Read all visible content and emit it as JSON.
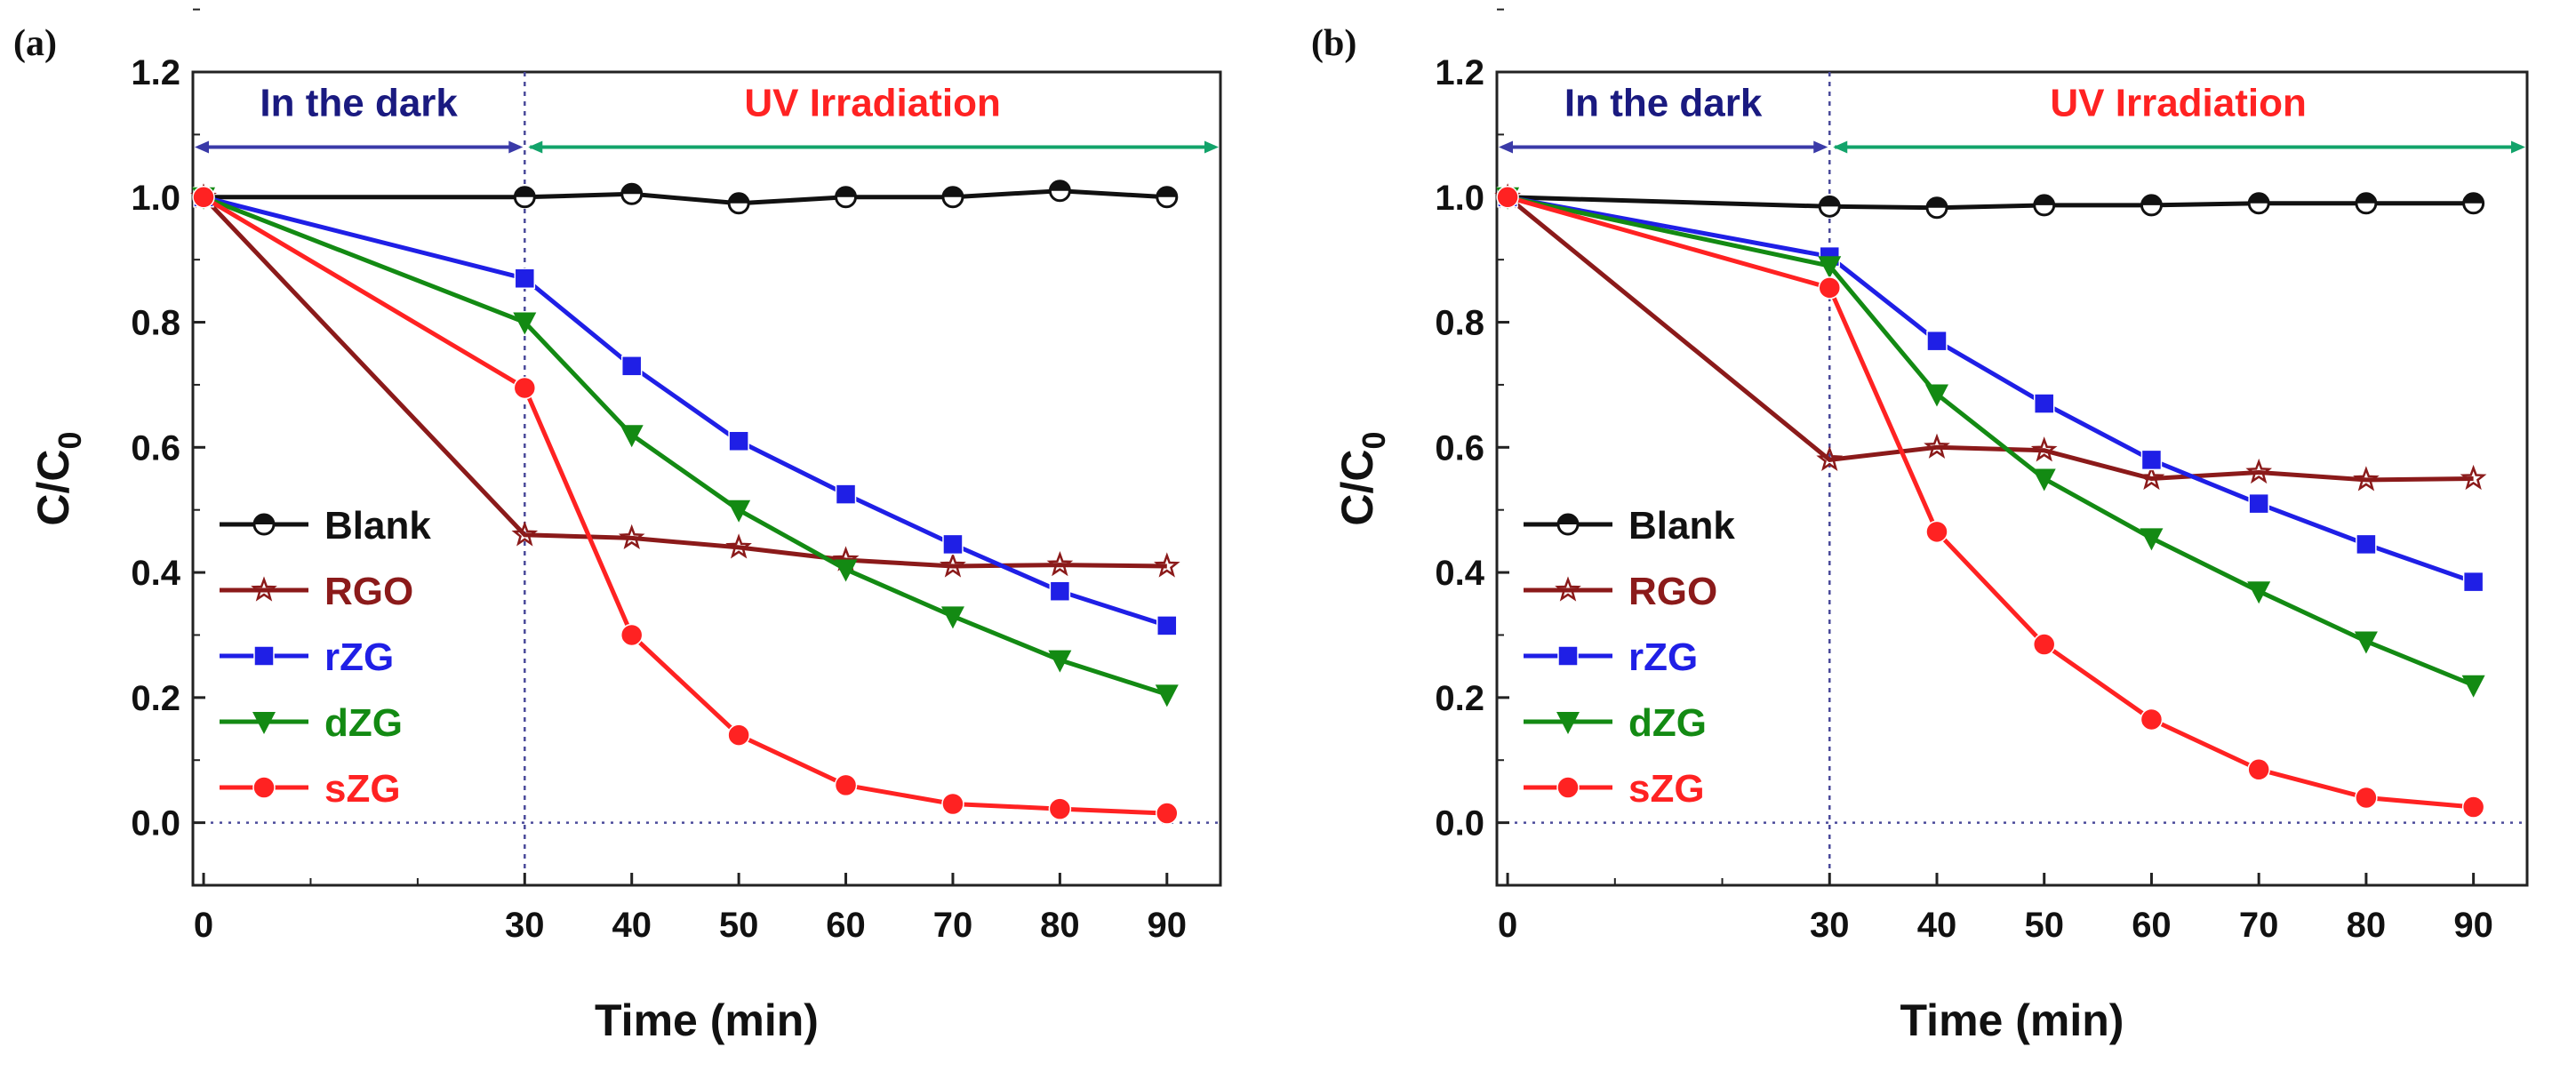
{
  "chart_data": [
    {
      "type": "line",
      "panel_label": "(a)",
      "xlabel": "Time (min)",
      "ylabel": "C/C",
      "ylabel_sub": "0",
      "x": [
        0,
        30,
        40,
        50,
        60,
        70,
        80,
        90
      ],
      "xticks": [
        "0",
        "30",
        "40",
        "50",
        "60",
        "70",
        "80",
        "90"
      ],
      "yticks": [
        "0.0",
        "0.2",
        "0.4",
        "0.6",
        "0.8",
        "1.0",
        "1.2"
      ],
      "xlim": [
        -1,
        95
      ],
      "ylim": [
        -0.1,
        1.2
      ],
      "annotations": {
        "dark": "In the dark",
        "uv": "UV Irradiation"
      },
      "legend_position": "center-left",
      "series": [
        {
          "name": "Blank",
          "color": "#111111",
          "marker": "half-circle",
          "values": [
            1.0,
            1.0,
            1.005,
            0.99,
            1.0,
            1.0,
            1.01,
            1.0
          ]
        },
        {
          "name": "RGO",
          "color": "#8b1a1a",
          "marker": "star",
          "values": [
            1.0,
            0.46,
            0.455,
            0.44,
            0.42,
            0.41,
            0.412,
            0.41
          ]
        },
        {
          "name": "rZG",
          "color": "#1f1fe6",
          "marker": "square",
          "values": [
            1.0,
            0.87,
            0.73,
            0.61,
            0.525,
            0.445,
            0.37,
            0.315
          ]
        },
        {
          "name": "dZG",
          "color": "#138a13",
          "marker": "triangle-down",
          "values": [
            1.0,
            0.8,
            0.62,
            0.5,
            0.405,
            0.33,
            0.26,
            0.205
          ]
        },
        {
          "name": "sZG",
          "color": "#ff2222",
          "marker": "circle",
          "values": [
            1.0,
            0.695,
            0.3,
            0.14,
            0.06,
            0.03,
            0.022,
            0.015
          ]
        }
      ]
    },
    {
      "type": "line",
      "panel_label": "(b)",
      "xlabel": "Time (min)",
      "ylabel": "C/C",
      "ylabel_sub": "0",
      "x": [
        0,
        30,
        40,
        50,
        60,
        70,
        80,
        90
      ],
      "xticks": [
        "0",
        "30",
        "40",
        "50",
        "60",
        "70",
        "80",
        "90"
      ],
      "yticks": [
        "0.0",
        "0.2",
        "0.4",
        "0.6",
        "0.8",
        "1.0",
        "1.2"
      ],
      "xlim": [
        -1,
        95
      ],
      "ylim": [
        -0.1,
        1.2
      ],
      "annotations": {
        "dark": "In the dark",
        "uv": "UV Irradiation"
      },
      "legend_position": "center-left",
      "series": [
        {
          "name": "Blank",
          "color": "#111111",
          "marker": "half-circle",
          "values": [
            1.0,
            0.985,
            0.983,
            0.987,
            0.987,
            0.99,
            0.99,
            0.99
          ]
        },
        {
          "name": "RGO",
          "color": "#8b1a1a",
          "marker": "star",
          "values": [
            1.0,
            0.58,
            0.6,
            0.595,
            0.55,
            0.56,
            0.548,
            0.55
          ]
        },
        {
          "name": "rZG",
          "color": "#1f1fe6",
          "marker": "square",
          "values": [
            1.0,
            0.905,
            0.77,
            0.67,
            0.58,
            0.51,
            0.445,
            0.385
          ]
        },
        {
          "name": "dZG",
          "color": "#138a13",
          "marker": "triangle-down",
          "values": [
            1.0,
            0.89,
            0.685,
            0.55,
            0.455,
            0.37,
            0.29,
            0.22
          ]
        },
        {
          "name": "sZG",
          "color": "#ff2222",
          "marker": "circle",
          "values": [
            1.0,
            0.855,
            0.465,
            0.285,
            0.165,
            0.085,
            0.04,
            0.025
          ]
        }
      ]
    }
  ],
  "colors": {
    "dark_arrow": "#3a3aa8",
    "dark_text": "#1a1a80",
    "uv_arrow": "#12a36a",
    "uv_text": "#ff2222",
    "guide": "#4a4a9a"
  }
}
